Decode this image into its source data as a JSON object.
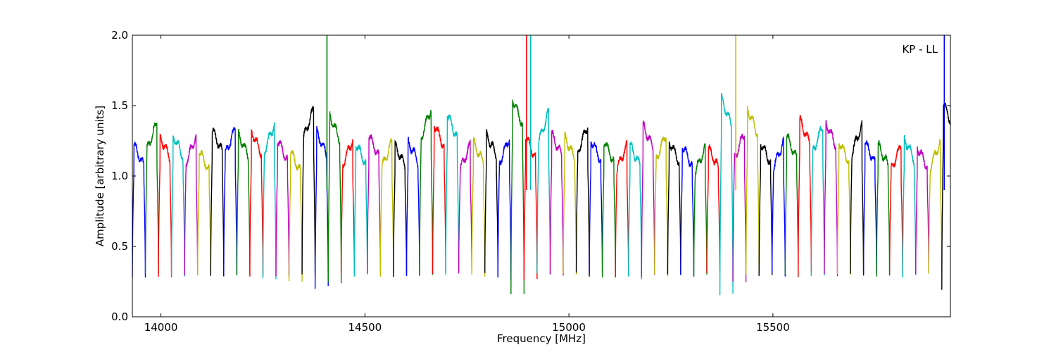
{
  "chart_data": {
    "type": "line",
    "title": "",
    "xlabel": "Frequency [MHz]",
    "ylabel": "Amplitude [arbitrary units]",
    "annotation": "KP - LL",
    "xlim": [
      13930,
      15935
    ],
    "ylim": [
      0.0,
      2.0
    ],
    "x_ticks": [
      14000,
      14500,
      15000,
      15500
    ],
    "y_ticks": [
      0.0,
      0.5,
      1.0,
      1.5,
      2.0
    ],
    "x_tick_labels": [
      "14000",
      "14500",
      "15000",
      "15500"
    ],
    "y_tick_labels": [
      "0.0",
      "0.5",
      "1.0",
      "1.5",
      "2.0"
    ],
    "grid": false,
    "legend": "none",
    "color_cycle": [
      "#0000ff",
      "#008000",
      "#ff0000",
      "#00bfbf",
      "#bf00bf",
      "#bfbf00",
      "#000000"
    ],
    "channel_width_mhz": 32,
    "first_channel_start_mhz": 13930,
    "channels": 63,
    "channel_peak_levels": [
      1.22,
      1.38,
      1.28,
      1.29,
      1.28,
      1.18,
      1.33,
      1.34,
      1.3,
      1.32,
      1.37,
      1.26,
      1.17,
      1.48,
      1.31,
      1.43,
      1.26,
      1.23,
      1.29,
      1.24,
      1.22,
      1.25,
      1.48,
      1.37,
      1.44,
      1.22,
      1.24,
      1.3,
      1.27,
      1.55,
      1.28,
      1.45,
      1.3,
      1.28,
      1.36,
      1.26,
      1.25,
      1.22,
      1.22,
      1.36,
      1.3,
      1.25,
      1.22,
      1.2,
      1.2,
      1.55,
      1.31,
      1.48,
      1.24,
      1.24,
      1.28,
      1.4,
      1.36,
      1.38,
      1.25,
      1.36,
      1.24,
      1.22,
      1.22,
      1.27,
      1.21,
      1.24,
      1.52
    ],
    "channel_trough_levels": [
      0.27,
      0.3,
      0.29,
      0.3,
      0.3,
      0.3,
      0.3,
      0.3,
      0.3,
      0.3,
      0.27,
      0.28,
      0.26,
      0.3,
      0.21,
      0.24,
      0.3,
      0.29,
      0.3,
      0.3,
      0.29,
      0.3,
      0.3,
      0.3,
      0.3,
      0.32,
      0.3,
      0.3,
      0.27,
      0.16,
      0.26,
      0.3,
      0.3,
      0.3,
      0.3,
      0.3,
      0.29,
      0.3,
      0.28,
      0.3,
      0.3,
      0.29,
      0.3,
      0.3,
      0.3,
      0.16,
      0.26,
      0.3,
      0.3,
      0.3,
      0.29,
      0.3,
      0.3,
      0.3,
      0.3,
      0.3,
      0.3,
      0.3,
      0.3,
      0.29,
      0.3,
      0.3,
      0.19
    ],
    "rfi_spikes": [
      {
        "x": 14407,
        "y": 2.0,
        "color": "#008000"
      },
      {
        "x": 14896,
        "y": 2.0,
        "color": "#ff0000"
      },
      {
        "x": 14906,
        "y": 2.0,
        "color": "#00bfbf"
      },
      {
        "x": 15409,
        "y": 2.0,
        "color": "#bfbf00"
      },
      {
        "x": 15920,
        "y": 2.0,
        "color": "#0000ff"
      }
    ]
  }
}
